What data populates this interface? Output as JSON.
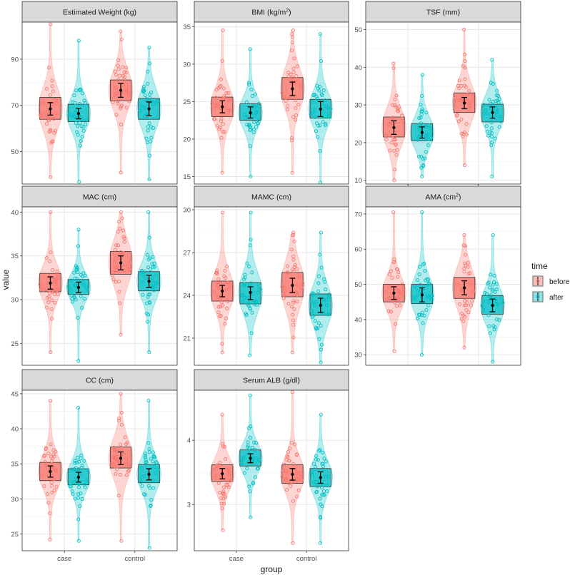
{
  "chart_data": {
    "type": "violin",
    "xlabel": "group",
    "ylabel": "value",
    "categories": [
      "case",
      "control"
    ],
    "legend": {
      "title": "time",
      "position": "right",
      "entries": [
        {
          "label": "before",
          "color": "#F8766D"
        },
        {
          "label": "after",
          "color": "#00BFC4"
        }
      ]
    },
    "panels": [
      {
        "title": "Estimated Weight (kg)",
        "ylim": [
          36,
          106
        ],
        "yticks": [
          "50",
          "70",
          "90"
        ],
        "groups": [
          {
            "cat": "case",
            "time": "before",
            "mean": 68.5,
            "ci": [
              65.8,
              71.2
            ],
            "q1": 64,
            "q3": 73.5,
            "min": 39,
            "max": 105
          },
          {
            "cat": "case",
            "time": "after",
            "mean": 66.5,
            "ci": [
              64.2,
              68.8
            ],
            "q1": 63,
            "q3": 70.5,
            "min": 37,
            "max": 98
          },
          {
            "cat": "control",
            "time": "before",
            "mean": 76.5,
            "ci": [
              73.5,
              79.5
            ],
            "q1": 72,
            "q3": 81,
            "min": 41,
            "max": 102
          },
          {
            "cat": "control",
            "time": "after",
            "mean": 68.5,
            "ci": [
              65.5,
              71.5
            ],
            "q1": 64,
            "q3": 73,
            "min": 38,
            "max": 95
          }
        ]
      },
      {
        "title": "BMI (kg/m²)",
        "ylim": [
          14,
          35.6
        ],
        "yticks": [
          "15",
          "20",
          "25",
          "30",
          "35"
        ],
        "groups": [
          {
            "cat": "case",
            "time": "before",
            "mean": 24.3,
            "ci": [
              23.5,
              25.1
            ],
            "q1": 23.0,
            "q3": 25.6,
            "min": 15.5,
            "max": 34.5
          },
          {
            "cat": "case",
            "time": "after",
            "mean": 23.5,
            "ci": [
              22.8,
              24.3
            ],
            "q1": 22.5,
            "q3": 24.7,
            "min": 15,
            "max": 32
          },
          {
            "cat": "control",
            "time": "before",
            "mean": 26.7,
            "ci": [
              25.8,
              27.6
            ],
            "q1": 25.3,
            "q3": 28.2,
            "min": 15.5,
            "max": 34.5
          },
          {
            "cat": "control",
            "time": "after",
            "mean": 24.0,
            "ci": [
              23.0,
              25.0
            ],
            "q1": 22.8,
            "q3": 25.3,
            "min": 14.2,
            "max": 34
          }
        ]
      },
      {
        "title": "TSF (mm)",
        "ylim": [
          9,
          52
        ],
        "yticks": [
          "10",
          "20",
          "30",
          "40",
          "50"
        ],
        "groups": [
          {
            "cat": "case",
            "time": "before",
            "mean": 24,
            "ci": [
              22.2,
              25.8
            ],
            "q1": 21.5,
            "q3": 26.8,
            "min": 10,
            "max": 41
          },
          {
            "cat": "case",
            "time": "after",
            "mean": 22.7,
            "ci": [
              21.2,
              24.2
            ],
            "q1": 20.5,
            "q3": 25,
            "min": 11,
            "max": 38
          },
          {
            "cat": "control",
            "time": "before",
            "mean": 30.5,
            "ci": [
              29,
              32
            ],
            "q1": 28,
            "q3": 33.2,
            "min": 14,
            "max": 50
          },
          {
            "cat": "control",
            "time": "after",
            "mean": 28,
            "ci": [
              26.5,
              29.5
            ],
            "q1": 25.5,
            "q3": 30.2,
            "min": 11,
            "max": 42
          }
        ]
      },
      {
        "title": "MAC (cm)",
        "ylim": [
          22.5,
          40.6
        ],
        "yticks": [
          "25",
          "30",
          "35",
          "40"
        ],
        "groups": [
          {
            "cat": "case",
            "time": "before",
            "mean": 31.9,
            "ci": [
              31.2,
              32.6
            ],
            "q1": 30.9,
            "q3": 33.0,
            "min": 24,
            "max": 40
          },
          {
            "cat": "case",
            "time": "after",
            "mean": 31.4,
            "ci": [
              30.8,
              32.0
            ],
            "q1": 30.6,
            "q3": 32.3,
            "min": 23,
            "max": 38
          },
          {
            "cat": "control",
            "time": "before",
            "mean": 34.2,
            "ci": [
              33.4,
              35.0
            ],
            "q1": 32.9,
            "q3": 35.5,
            "min": 26,
            "max": 40
          },
          {
            "cat": "control",
            "time": "after",
            "mean": 32.1,
            "ci": [
              31.4,
              32.8
            ],
            "q1": 31.0,
            "q3": 33.2,
            "min": 24,
            "max": 40
          }
        ]
      },
      {
        "title": "MAMC (cm)",
        "ylim": [
          19.1,
          30.2
        ],
        "yticks": [
          "21",
          "24",
          "27",
          "30"
        ],
        "groups": [
          {
            "cat": "case",
            "time": "before",
            "mean": 24.3,
            "ci": [
              23.9,
              24.7
            ],
            "q1": 23.6,
            "q3": 25.0,
            "min": 20,
            "max": 29.8
          },
          {
            "cat": "case",
            "time": "after",
            "mean": 24.2,
            "ci": [
              23.7,
              24.6
            ],
            "q1": 23.4,
            "q3": 24.9,
            "min": 19.8,
            "max": 29.8
          },
          {
            "cat": "control",
            "time": "before",
            "mean": 24.7,
            "ci": [
              24.2,
              25.2
            ],
            "q1": 23.9,
            "q3": 25.6,
            "min": 20,
            "max": 28.4
          },
          {
            "cat": "control",
            "time": "after",
            "mean": 23.3,
            "ci": [
              22.8,
              23.8
            ],
            "q1": 22.6,
            "q3": 24.1,
            "min": 19.3,
            "max": 28.4
          }
        ]
      },
      {
        "title": "AMA (cm²)",
        "ylim": [
          27,
          72
        ],
        "yticks": [
          "30",
          "40",
          "50",
          "60",
          "70"
        ],
        "groups": [
          {
            "cat": "case",
            "time": "before",
            "mean": 47.5,
            "ci": [
              45.7,
              49.3
            ],
            "q1": 45,
            "q3": 50,
            "min": 31,
            "max": 70.5
          },
          {
            "cat": "case",
            "time": "after",
            "mean": 47,
            "ci": [
              45,
              49
            ],
            "q1": 44.5,
            "q3": 50,
            "min": 30,
            "max": 70.5
          },
          {
            "cat": "control",
            "time": "before",
            "mean": 49,
            "ci": [
              47,
              51
            ],
            "q1": 46,
            "q3": 52,
            "min": 32,
            "max": 64
          },
          {
            "cat": "control",
            "time": "after",
            "mean": 44,
            "ci": [
              42.2,
              45.8
            ],
            "q1": 41.5,
            "q3": 46.8,
            "min": 28,
            "max": 64
          }
        ]
      },
      {
        "title": "CC (cm)",
        "ylim": [
          22.6,
          45.5
        ],
        "yticks": [
          "25",
          "30",
          "35",
          "40",
          "45"
        ],
        "groups": [
          {
            "cat": "case",
            "time": "before",
            "mean": 33.9,
            "ci": [
              33.1,
              34.7
            ],
            "q1": 32.6,
            "q3": 35.2,
            "min": 24.2,
            "max": 44
          },
          {
            "cat": "case",
            "time": "after",
            "mean": 33.1,
            "ci": [
              32.4,
              33.8
            ],
            "q1": 32.0,
            "q3": 34.3,
            "min": 24,
            "max": 43
          },
          {
            "cat": "control",
            "time": "before",
            "mean": 35.8,
            "ci": [
              34.9,
              36.7
            ],
            "q1": 34.4,
            "q3": 37.4,
            "min": 24,
            "max": 45
          },
          {
            "cat": "control",
            "time": "after",
            "mean": 33.5,
            "ci": [
              32.7,
              34.3
            ],
            "q1": 32.3,
            "q3": 34.9,
            "min": 23,
            "max": 44
          }
        ]
      },
      {
        "title": "Serum ALB (g/dl)",
        "ylim": [
          2.28,
          4.78
        ],
        "yticks": [
          "3",
          "4"
        ],
        "groups": [
          {
            "cat": "case",
            "time": "before",
            "mean": 3.48,
            "ci": [
              3.4,
              3.56
            ],
            "q1": 3.36,
            "q3": 3.62,
            "min": 2.6,
            "max": 4.4
          },
          {
            "cat": "case",
            "time": "after",
            "mean": 3.72,
            "ci": [
              3.65,
              3.79
            ],
            "q1": 3.6,
            "q3": 3.85,
            "min": 2.8,
            "max": 4.7
          },
          {
            "cat": "control",
            "time": "before",
            "mean": 3.47,
            "ci": [
              3.38,
              3.56
            ],
            "q1": 3.33,
            "q3": 3.62,
            "min": 2.4,
            "max": 4.75
          },
          {
            "cat": "control",
            "time": "after",
            "mean": 3.42,
            "ci": [
              3.33,
              3.51
            ],
            "q1": 3.28,
            "q3": 3.56,
            "min": 2.4,
            "max": 4.4
          }
        ]
      }
    ]
  }
}
